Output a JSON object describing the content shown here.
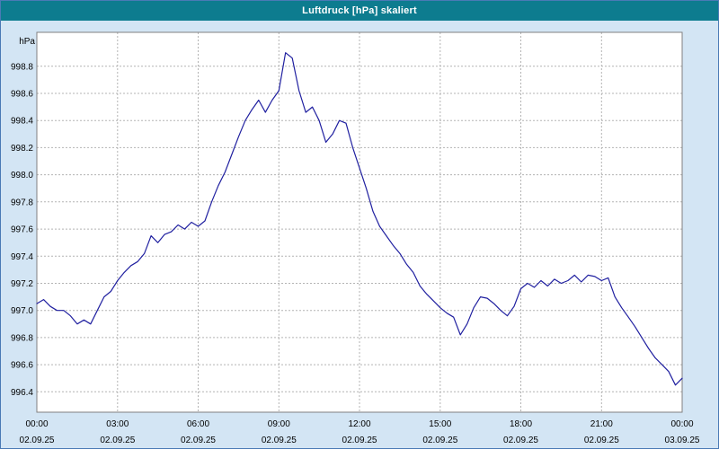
{
  "window": {
    "title": "Luftdruck [hPa] skaliert"
  },
  "chart_data": {
    "type": "line",
    "title": "Luftdruck [hPa] skaliert",
    "xlabel": "",
    "ylabel": "hPa",
    "series_name": "Luftdruck",
    "line_color": "#2020a0",
    "grid_color": "#b3b3b3",
    "background_color": "#d3e5f4",
    "plot_background": "#ffffff",
    "titlebar_color": "#0d7c8f",
    "grid": "on",
    "legend": "none",
    "xlim": [
      0,
      24
    ],
    "ylim": [
      996.25,
      999.05
    ],
    "yticks": [
      996.4,
      996.6,
      996.8,
      997.0,
      997.2,
      997.4,
      997.6,
      997.8,
      998.0,
      998.2,
      998.4,
      998.6,
      998.8
    ],
    "xticks": {
      "hours": [
        0,
        3,
        6,
        9,
        12,
        15,
        18,
        21,
        24
      ],
      "time_labels": [
        "00:00",
        "03:00",
        "06:00",
        "09:00",
        "12:00",
        "15:00",
        "18:00",
        "21:00",
        "00:00"
      ],
      "date_labels": [
        "02.09.25",
        "02.09.25",
        "02.09.25",
        "02.09.25",
        "02.09.25",
        "02.09.25",
        "02.09.25",
        "02.09.25",
        "03.09.25"
      ]
    },
    "points": [
      [
        0.0,
        997.05
      ],
      [
        0.25,
        997.08
      ],
      [
        0.5,
        997.03
      ],
      [
        0.75,
        997.0
      ],
      [
        1.0,
        997.0
      ],
      [
        1.25,
        996.96
      ],
      [
        1.5,
        996.9
      ],
      [
        1.75,
        996.93
      ],
      [
        2.0,
        996.9
      ],
      [
        2.25,
        997.0
      ],
      [
        2.5,
        997.1
      ],
      [
        2.75,
        997.14
      ],
      [
        3.0,
        997.22
      ],
      [
        3.25,
        997.28
      ],
      [
        3.5,
        997.33
      ],
      [
        3.75,
        997.36
      ],
      [
        4.0,
        997.42
      ],
      [
        4.25,
        997.55
      ],
      [
        4.5,
        997.5
      ],
      [
        4.75,
        997.56
      ],
      [
        5.0,
        997.58
      ],
      [
        5.25,
        997.63
      ],
      [
        5.5,
        997.6
      ],
      [
        5.75,
        997.65
      ],
      [
        6.0,
        997.62
      ],
      [
        6.25,
        997.66
      ],
      [
        6.5,
        997.8
      ],
      [
        6.75,
        997.92
      ],
      [
        7.0,
        998.02
      ],
      [
        7.25,
        998.15
      ],
      [
        7.5,
        998.28
      ],
      [
        7.75,
        998.4
      ],
      [
        8.0,
        998.48
      ],
      [
        8.25,
        998.55
      ],
      [
        8.5,
        998.46
      ],
      [
        8.75,
        998.55
      ],
      [
        9.0,
        998.62
      ],
      [
        9.25,
        998.9
      ],
      [
        9.5,
        998.86
      ],
      [
        9.75,
        998.62
      ],
      [
        10.0,
        998.46
      ],
      [
        10.25,
        998.5
      ],
      [
        10.5,
        998.4
      ],
      [
        10.75,
        998.24
      ],
      [
        11.0,
        998.3
      ],
      [
        11.25,
        998.4
      ],
      [
        11.5,
        998.38
      ],
      [
        11.75,
        998.2
      ],
      [
        12.0,
        998.05
      ],
      [
        12.25,
        997.9
      ],
      [
        12.5,
        997.73
      ],
      [
        12.75,
        997.62
      ],
      [
        13.0,
        997.55
      ],
      [
        13.25,
        997.48
      ],
      [
        13.5,
        997.42
      ],
      [
        13.75,
        997.34
      ],
      [
        14.0,
        997.28
      ],
      [
        14.25,
        997.18
      ],
      [
        14.5,
        997.12
      ],
      [
        14.75,
        997.07
      ],
      [
        15.0,
        997.02
      ],
      [
        15.25,
        996.98
      ],
      [
        15.5,
        996.95
      ],
      [
        15.75,
        996.82
      ],
      [
        16.0,
        996.9
      ],
      [
        16.25,
        997.02
      ],
      [
        16.5,
        997.1
      ],
      [
        16.75,
        997.09
      ],
      [
        17.0,
        997.05
      ],
      [
        17.25,
        997.0
      ],
      [
        17.5,
        996.96
      ],
      [
        17.75,
        997.03
      ],
      [
        18.0,
        997.16
      ],
      [
        18.25,
        997.2
      ],
      [
        18.5,
        997.17
      ],
      [
        18.75,
        997.22
      ],
      [
        19.0,
        997.18
      ],
      [
        19.25,
        997.23
      ],
      [
        19.5,
        997.2
      ],
      [
        19.75,
        997.22
      ],
      [
        20.0,
        997.26
      ],
      [
        20.25,
        997.21
      ],
      [
        20.5,
        997.26
      ],
      [
        20.75,
        997.25
      ],
      [
        21.0,
        997.22
      ],
      [
        21.25,
        997.24
      ],
      [
        21.5,
        997.1
      ],
      [
        21.75,
        997.02
      ],
      [
        22.0,
        996.95
      ],
      [
        22.25,
        996.88
      ],
      [
        22.5,
        996.8
      ],
      [
        22.75,
        996.72
      ],
      [
        23.0,
        996.65
      ],
      [
        23.25,
        996.6
      ],
      [
        23.5,
        996.55
      ],
      [
        23.75,
        996.45
      ],
      [
        24.0,
        996.5
      ]
    ]
  }
}
